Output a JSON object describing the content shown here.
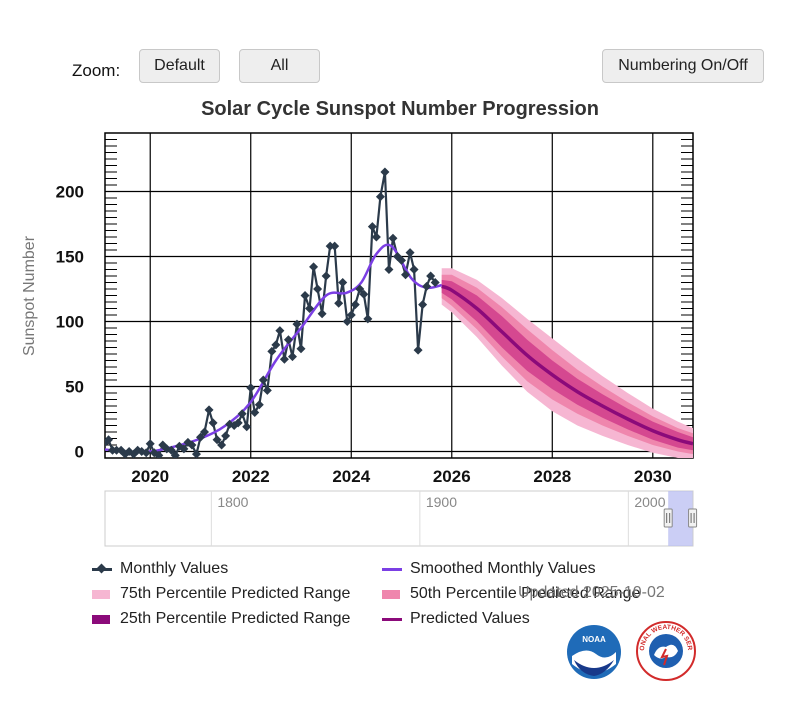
{
  "controls": {
    "zoom_label": "Zoom:",
    "default_label": "Default",
    "all_label": "All",
    "numbering_label": "Numbering On/Off"
  },
  "chart_title": "Solar Cycle Sunspot Number Progression",
  "updated_text": "Updated 2025-10-02",
  "legend": {
    "monthly": "Monthly Values",
    "smoothed": "Smoothed Monthly Values",
    "p75": "75th Percentile Predicted Range",
    "p50": "50th Percentile Predicted Range",
    "p25": "25th Percentile Predicted Range",
    "predicted": "Predicted Values"
  },
  "colors": {
    "monthly": "#2b3a4a",
    "smoothed": "#7b3fe4",
    "p75": "#f6b6d2",
    "p50": "#ef86ad",
    "p25": "#a3126a",
    "predicted": "#8b0a7a",
    "navigator_band": "#b9bdf2"
  },
  "logos": {
    "noaa": "NOAA",
    "nws": "NATIONAL WEATHER SERVICE"
  },
  "navigator": {
    "tick_labels": [
      "1800",
      "1900",
      "2000"
    ]
  },
  "chart_data": {
    "type": "line",
    "title": "Solar Cycle Sunspot Number Progression",
    "ylabel": "Sunspot Number",
    "xlabel": "",
    "xlim": [
      2019.1,
      2030.8
    ],
    "ylim": [
      -5,
      245
    ],
    "x_ticks": [
      "2020",
      "2022",
      "2024",
      "2026",
      "2028",
      "2030"
    ],
    "y_ticks": [
      "0",
      "50",
      "100",
      "150",
      "200"
    ],
    "grid": true,
    "legend_position": "bottom",
    "series": [
      {
        "name": "Monthly Values",
        "x": [
          2019.0,
          2019.08,
          2019.17,
          2019.25,
          2019.33,
          2019.42,
          2019.5,
          2019.58,
          2019.67,
          2019.75,
          2019.83,
          2019.92,
          2020.0,
          2020.08,
          2020.17,
          2020.25,
          2020.33,
          2020.42,
          2020.5,
          2020.58,
          2020.67,
          2020.75,
          2020.83,
          2020.92,
          2021.0,
          2021.08,
          2021.17,
          2021.25,
          2021.33,
          2021.42,
          2021.5,
          2021.58,
          2021.67,
          2021.75,
          2021.83,
          2021.92,
          2022.0,
          2022.08,
          2022.17,
          2022.25,
          2022.33,
          2022.42,
          2022.5,
          2022.58,
          2022.67,
          2022.75,
          2022.83,
          2022.92,
          2023.0,
          2023.08,
          2023.17,
          2023.25,
          2023.33,
          2023.42,
          2023.5,
          2023.58,
          2023.67,
          2023.75,
          2023.83,
          2023.92,
          2024.0,
          2024.08,
          2024.17,
          2024.25,
          2024.33,
          2024.42,
          2024.5,
          2024.58,
          2024.67,
          2024.75,
          2024.83,
          2024.92,
          2025.0,
          2025.08,
          2025.17,
          2025.25,
          2025.33,
          2025.42,
          2025.5,
          2025.58,
          2025.67
        ],
        "y": [
          8,
          6,
          9,
          1,
          1,
          1,
          -2,
          0,
          -2,
          1,
          0,
          -1,
          6,
          -1,
          -3,
          5,
          2,
          1,
          -3,
          4,
          2,
          7,
          5,
          -2,
          11,
          15,
          32,
          22,
          9,
          5,
          12,
          21,
          20,
          22,
          29,
          19,
          49,
          30,
          36,
          55,
          47,
          77,
          82,
          93,
          71,
          86,
          73,
          98,
          79,
          120,
          110,
          142,
          125,
          106,
          135,
          158,
          158,
          114,
          130,
          100,
          105,
          113,
          125,
          121,
          102,
          173,
          165,
          196,
          215,
          140,
          164,
          150,
          147,
          136,
          153,
          140,
          78,
          113,
          127,
          135,
          130
        ]
      },
      {
        "name": "Smoothed Monthly Values",
        "x": [
          2019.0,
          2019.5,
          2020.0,
          2020.5,
          2021.0,
          2021.5,
          2022.0,
          2022.5,
          2023.0,
          2023.5,
          2023.9,
          2024.2,
          2024.5,
          2024.8,
          2025.2,
          2025.5,
          2025.8
        ],
        "y": [
          2,
          0,
          0,
          4,
          10,
          20,
          38,
          70,
          95,
          120,
          122,
          130,
          152,
          158,
          133,
          126,
          128
        ]
      },
      {
        "name": "Predicted Values",
        "x": [
          2025.8,
          2026.0,
          2026.5,
          2027.0,
          2027.5,
          2028.0,
          2028.5,
          2029.0,
          2029.5,
          2030.0,
          2030.5,
          2030.8
        ],
        "y": [
          127,
          124,
          110,
          92,
          74,
          59,
          46,
          35,
          25,
          16,
          9,
          6
        ],
        "p25_half_width": [
          5,
          7,
          10,
          12,
          12,
          11,
          10,
          9,
          8,
          7,
          6,
          5
        ],
        "p50_half_width": [
          9,
          12,
          16,
          19,
          20,
          19,
          17,
          15,
          13,
          11,
          9,
          8
        ],
        "p75_half_width": [
          14,
          17,
          22,
          26,
          28,
          28,
          26,
          23,
          20,
          17,
          14,
          12
        ]
      }
    ]
  }
}
